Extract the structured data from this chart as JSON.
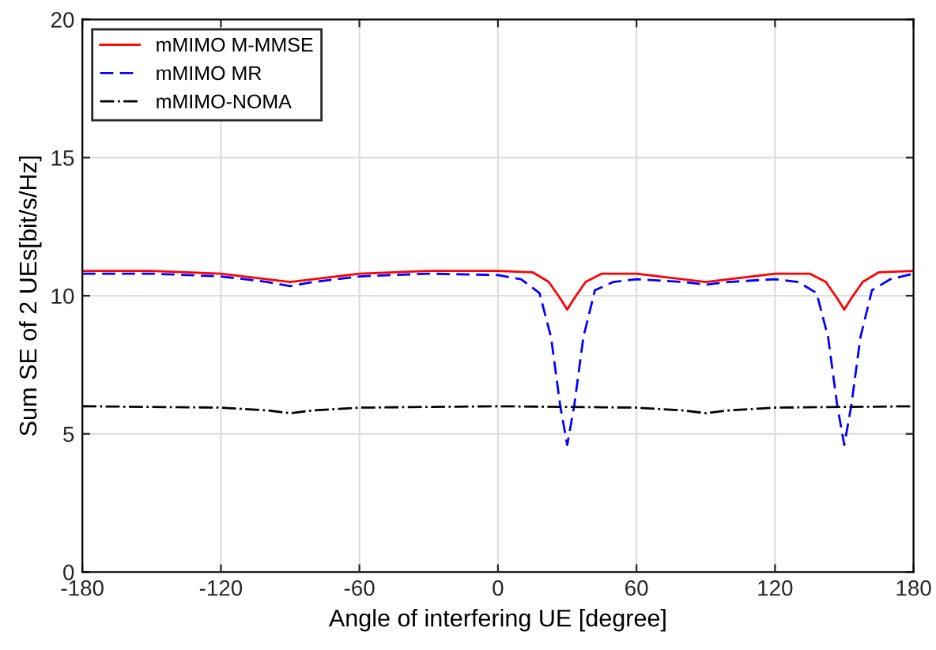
{
  "chart_data": {
    "type": "line",
    "xlabel": "Angle of interfering UE [degree]",
    "ylabel": "Sum SE of 2 UEs[bit/s/Hz]",
    "xlim": [
      -180,
      180
    ],
    "xticks": [
      -180,
      -120,
      -60,
      0,
      60,
      120,
      180
    ],
    "ylim": [
      0,
      20
    ],
    "yticks": [
      0,
      5,
      10,
      15,
      20
    ],
    "grid": true,
    "legend": "top left",
    "series": [
      {
        "name": "mMIMO M-MMSE",
        "color": "#ff0000",
        "line_style": "solid",
        "x": [
          -180,
          -150,
          -120,
          -100,
          -90,
          -80,
          -60,
          -30,
          0,
          15,
          22,
          27,
          30,
          33,
          38,
          45,
          60,
          80,
          90,
          100,
          120,
          135,
          142,
          147,
          150,
          153,
          158,
          165,
          180
        ],
        "values": [
          10.9,
          10.9,
          10.8,
          10.6,
          10.5,
          10.6,
          10.8,
          10.9,
          10.9,
          10.85,
          10.5,
          9.9,
          9.5,
          9.9,
          10.5,
          10.8,
          10.8,
          10.6,
          10.5,
          10.6,
          10.8,
          10.8,
          10.5,
          9.9,
          9.5,
          9.9,
          10.5,
          10.85,
          10.9
        ]
      },
      {
        "name": "mMIMO MR",
        "color": "#0000ff",
        "line_style": "dashed",
        "x": [
          -180,
          -150,
          -120,
          -100,
          -90,
          -80,
          -60,
          -30,
          0,
          10,
          18,
          23,
          27,
          30,
          33,
          37,
          42,
          50,
          60,
          80,
          90,
          100,
          120,
          130,
          138,
          143,
          147,
          150,
          153,
          157,
          162,
          170,
          180
        ],
        "values": [
          10.8,
          10.8,
          10.7,
          10.5,
          10.35,
          10.5,
          10.7,
          10.8,
          10.75,
          10.6,
          10.1,
          8.5,
          6.0,
          4.6,
          6.0,
          8.5,
          10.2,
          10.5,
          10.6,
          10.5,
          10.4,
          10.5,
          10.6,
          10.5,
          10.1,
          8.5,
          6.0,
          4.6,
          6.0,
          8.5,
          10.2,
          10.6,
          10.8
        ]
      },
      {
        "name": "mMIMO-NOMA",
        "color": "#000000",
        "line_style": "dashdot",
        "x": [
          -180,
          -120,
          -100,
          -90,
          -80,
          -60,
          0,
          60,
          80,
          90,
          100,
          120,
          180
        ],
        "values": [
          6.0,
          5.95,
          5.85,
          5.75,
          5.85,
          5.95,
          6.0,
          5.95,
          5.85,
          5.75,
          5.85,
          5.95,
          6.0
        ]
      }
    ]
  }
}
